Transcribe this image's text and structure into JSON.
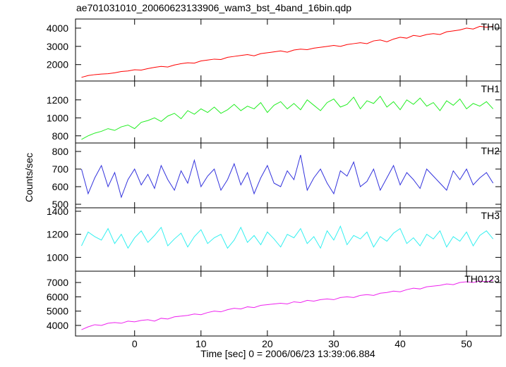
{
  "chart_data": {
    "type": "line",
    "title": "ae701031010_20060623133906_wam3_bst_4band_16bin.qdp",
    "xlabel": "Time [sec] 0 = 2006/06/23 13:39:06.884",
    "ylabel": "Counts/sec",
    "xlim": [
      -8.9,
      55.2
    ],
    "xticks": [
      0,
      10,
      20,
      30,
      40,
      50
    ],
    "x": [
      -8,
      -7,
      -6,
      -5,
      -4,
      -3,
      -2,
      -1,
      0,
      1,
      2,
      3,
      4,
      5,
      6,
      7,
      8,
      9,
      10,
      11,
      12,
      13,
      14,
      15,
      16,
      17,
      18,
      19,
      20,
      21,
      22,
      23,
      24,
      25,
      26,
      27,
      28,
      29,
      30,
      31,
      32,
      33,
      34,
      35,
      36,
      37,
      38,
      39,
      40,
      41,
      42,
      43,
      44,
      45,
      46,
      47,
      48,
      49,
      50,
      51,
      52,
      53,
      54
    ],
    "series": [
      {
        "name": "TH0",
        "color": "#ff0000",
        "ylim": [
          1100,
          4500
        ],
        "yticks": [
          2000,
          3000,
          4000
        ],
        "values": [
          1300,
          1400,
          1450,
          1480,
          1500,
          1550,
          1620,
          1650,
          1720,
          1700,
          1780,
          1850,
          1900,
          1870,
          1980,
          2050,
          2100,
          2080,
          2200,
          2250,
          2300,
          2280,
          2400,
          2450,
          2500,
          2550,
          2480,
          2600,
          2650,
          2700,
          2750,
          2680,
          2800,
          2850,
          2820,
          2900,
          2950,
          3000,
          3050,
          3000,
          3100,
          3150,
          3200,
          3150,
          3300,
          3350,
          3250,
          3400,
          3500,
          3450,
          3600,
          3550,
          3650,
          3700,
          3650,
          3800,
          3850,
          3900,
          4000,
          3950,
          4100,
          4050,
          4100
        ]
      },
      {
        "name": "TH1",
        "color": "#22ee22",
        "ylim": [
          720,
          1410
        ],
        "yticks": [
          800,
          1000,
          1200
        ],
        "values": [
          760,
          800,
          830,
          850,
          880,
          860,
          900,
          920,
          880,
          950,
          970,
          1000,
          960,
          1020,
          1050,
          990,
          1080,
          1040,
          1100,
          1060,
          1120,
          1050,
          1090,
          1150,
          1080,
          1130,
          1100,
          1170,
          1060,
          1140,
          1180,
          1100,
          1160,
          1090,
          1200,
          1140,
          1080,
          1170,
          1210,
          1120,
          1150,
          1230,
          1100,
          1190,
          1160,
          1240,
          1120,
          1180,
          1090,
          1200,
          1150,
          1220,
          1130,
          1170,
          1080,
          1190,
          1140,
          1210,
          1100,
          1160,
          1130,
          1180,
          1100
        ]
      },
      {
        "name": "TH2",
        "color": "#3333dd",
        "ylim": [
          480,
          848
        ],
        "yticks": [
          500,
          600,
          700,
          800
        ],
        "values": [
          700,
          560,
          650,
          720,
          600,
          680,
          540,
          640,
          700,
          610,
          670,
          590,
          720,
          640,
          580,
          690,
          620,
          750,
          600,
          660,
          700,
          580,
          640,
          730,
          610,
          680,
          560,
          650,
          720,
          620,
          600,
          690,
          640,
          780,
          580,
          650,
          700,
          620,
          560,
          690,
          660,
          740,
          600,
          630,
          700,
          580,
          650,
          720,
          610,
          680,
          640,
          590,
          700,
          660,
          620,
          580,
          690,
          640,
          700,
          610,
          650,
          680,
          620
        ]
      },
      {
        "name": "TH3",
        "color": "#33f0f0",
        "ylim": [
          880,
          1430
        ],
        "yticks": [
          1000,
          1200,
          1400
        ],
        "values": [
          1100,
          1220,
          1180,
          1150,
          1250,
          1120,
          1200,
          1080,
          1170,
          1230,
          1130,
          1190,
          1260,
          1100,
          1160,
          1210,
          1090,
          1180,
          1240,
          1120,
          1170,
          1200,
          1080,
          1150,
          1260,
          1130,
          1190,
          1110,
          1220,
          1160,
          1090,
          1200,
          1170,
          1250,
          1120,
          1180,
          1080,
          1230,
          1150,
          1270,
          1110,
          1190,
          1160,
          1220,
          1090,
          1180,
          1140,
          1210,
          1250,
          1120,
          1170,
          1100,
          1200,
          1160,
          1230,
          1090,
          1180,
          1140,
          1220,
          1100,
          1190,
          1230,
          1160
        ]
      },
      {
        "name": "TH0123",
        "color": "#ee22ee",
        "ylim": [
          3260,
          7790
        ],
        "yticks": [
          4000,
          5000,
          6000,
          7000
        ],
        "values": [
          3700,
          3900,
          4050,
          4000,
          4150,
          4200,
          4150,
          4300,
          4250,
          4350,
          4400,
          4300,
          4500,
          4450,
          4600,
          4650,
          4700,
          4800,
          4750,
          4900,
          5000,
          4950,
          5100,
          5200,
          5150,
          5300,
          5250,
          5400,
          5450,
          5500,
          5550,
          5500,
          5650,
          5600,
          5750,
          5700,
          5800,
          5850,
          5800,
          5950,
          6000,
          5950,
          6100,
          6150,
          6100,
          6250,
          6300,
          6400,
          6350,
          6500,
          6600,
          6550,
          6700,
          6750,
          6800,
          6900,
          6850,
          7000,
          7050,
          7000,
          7100,
          7050,
          7150
        ]
      }
    ]
  }
}
